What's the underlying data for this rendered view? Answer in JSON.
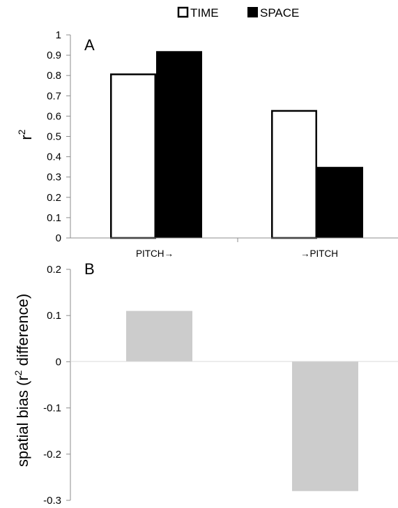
{
  "chart_data": [
    {
      "panel": "A",
      "type": "bar",
      "categories": [
        "PITCH→",
        "→PITCH"
      ],
      "series": [
        {
          "name": "TIME",
          "values": [
            0.81,
            0.63
          ],
          "fill": "#ffffff",
          "stroke": "#000000"
        },
        {
          "name": "SPACE",
          "values": [
            0.92,
            0.35
          ],
          "fill": "#000000",
          "stroke": "#000000"
        }
      ],
      "ylabel_main": "r",
      "ylabel_sup": "2",
      "ylim": [
        0,
        1
      ],
      "yticks": [
        "0",
        "0.1",
        "0.2",
        "0.3",
        "0.4",
        "0.5",
        "0.6",
        "0.7",
        "0.8",
        "0.9",
        "1"
      ],
      "grid": false,
      "legend_position": "top"
    },
    {
      "panel": "B",
      "type": "bar",
      "categories": [
        "PITCH→",
        "→PITCH"
      ],
      "series": [
        {
          "values": [
            0.11,
            -0.28
          ],
          "fill": "#cccccc"
        }
      ],
      "ylabel_pre": "spatial bias (r",
      "ylabel_sup": "2",
      "ylabel_post": " difference)",
      "ylim": [
        -0.3,
        0.2
      ],
      "yticks": [
        "0.2",
        "0.1",
        "0",
        "-0.1",
        "-0.2",
        "-0.3"
      ],
      "grid": false
    }
  ]
}
